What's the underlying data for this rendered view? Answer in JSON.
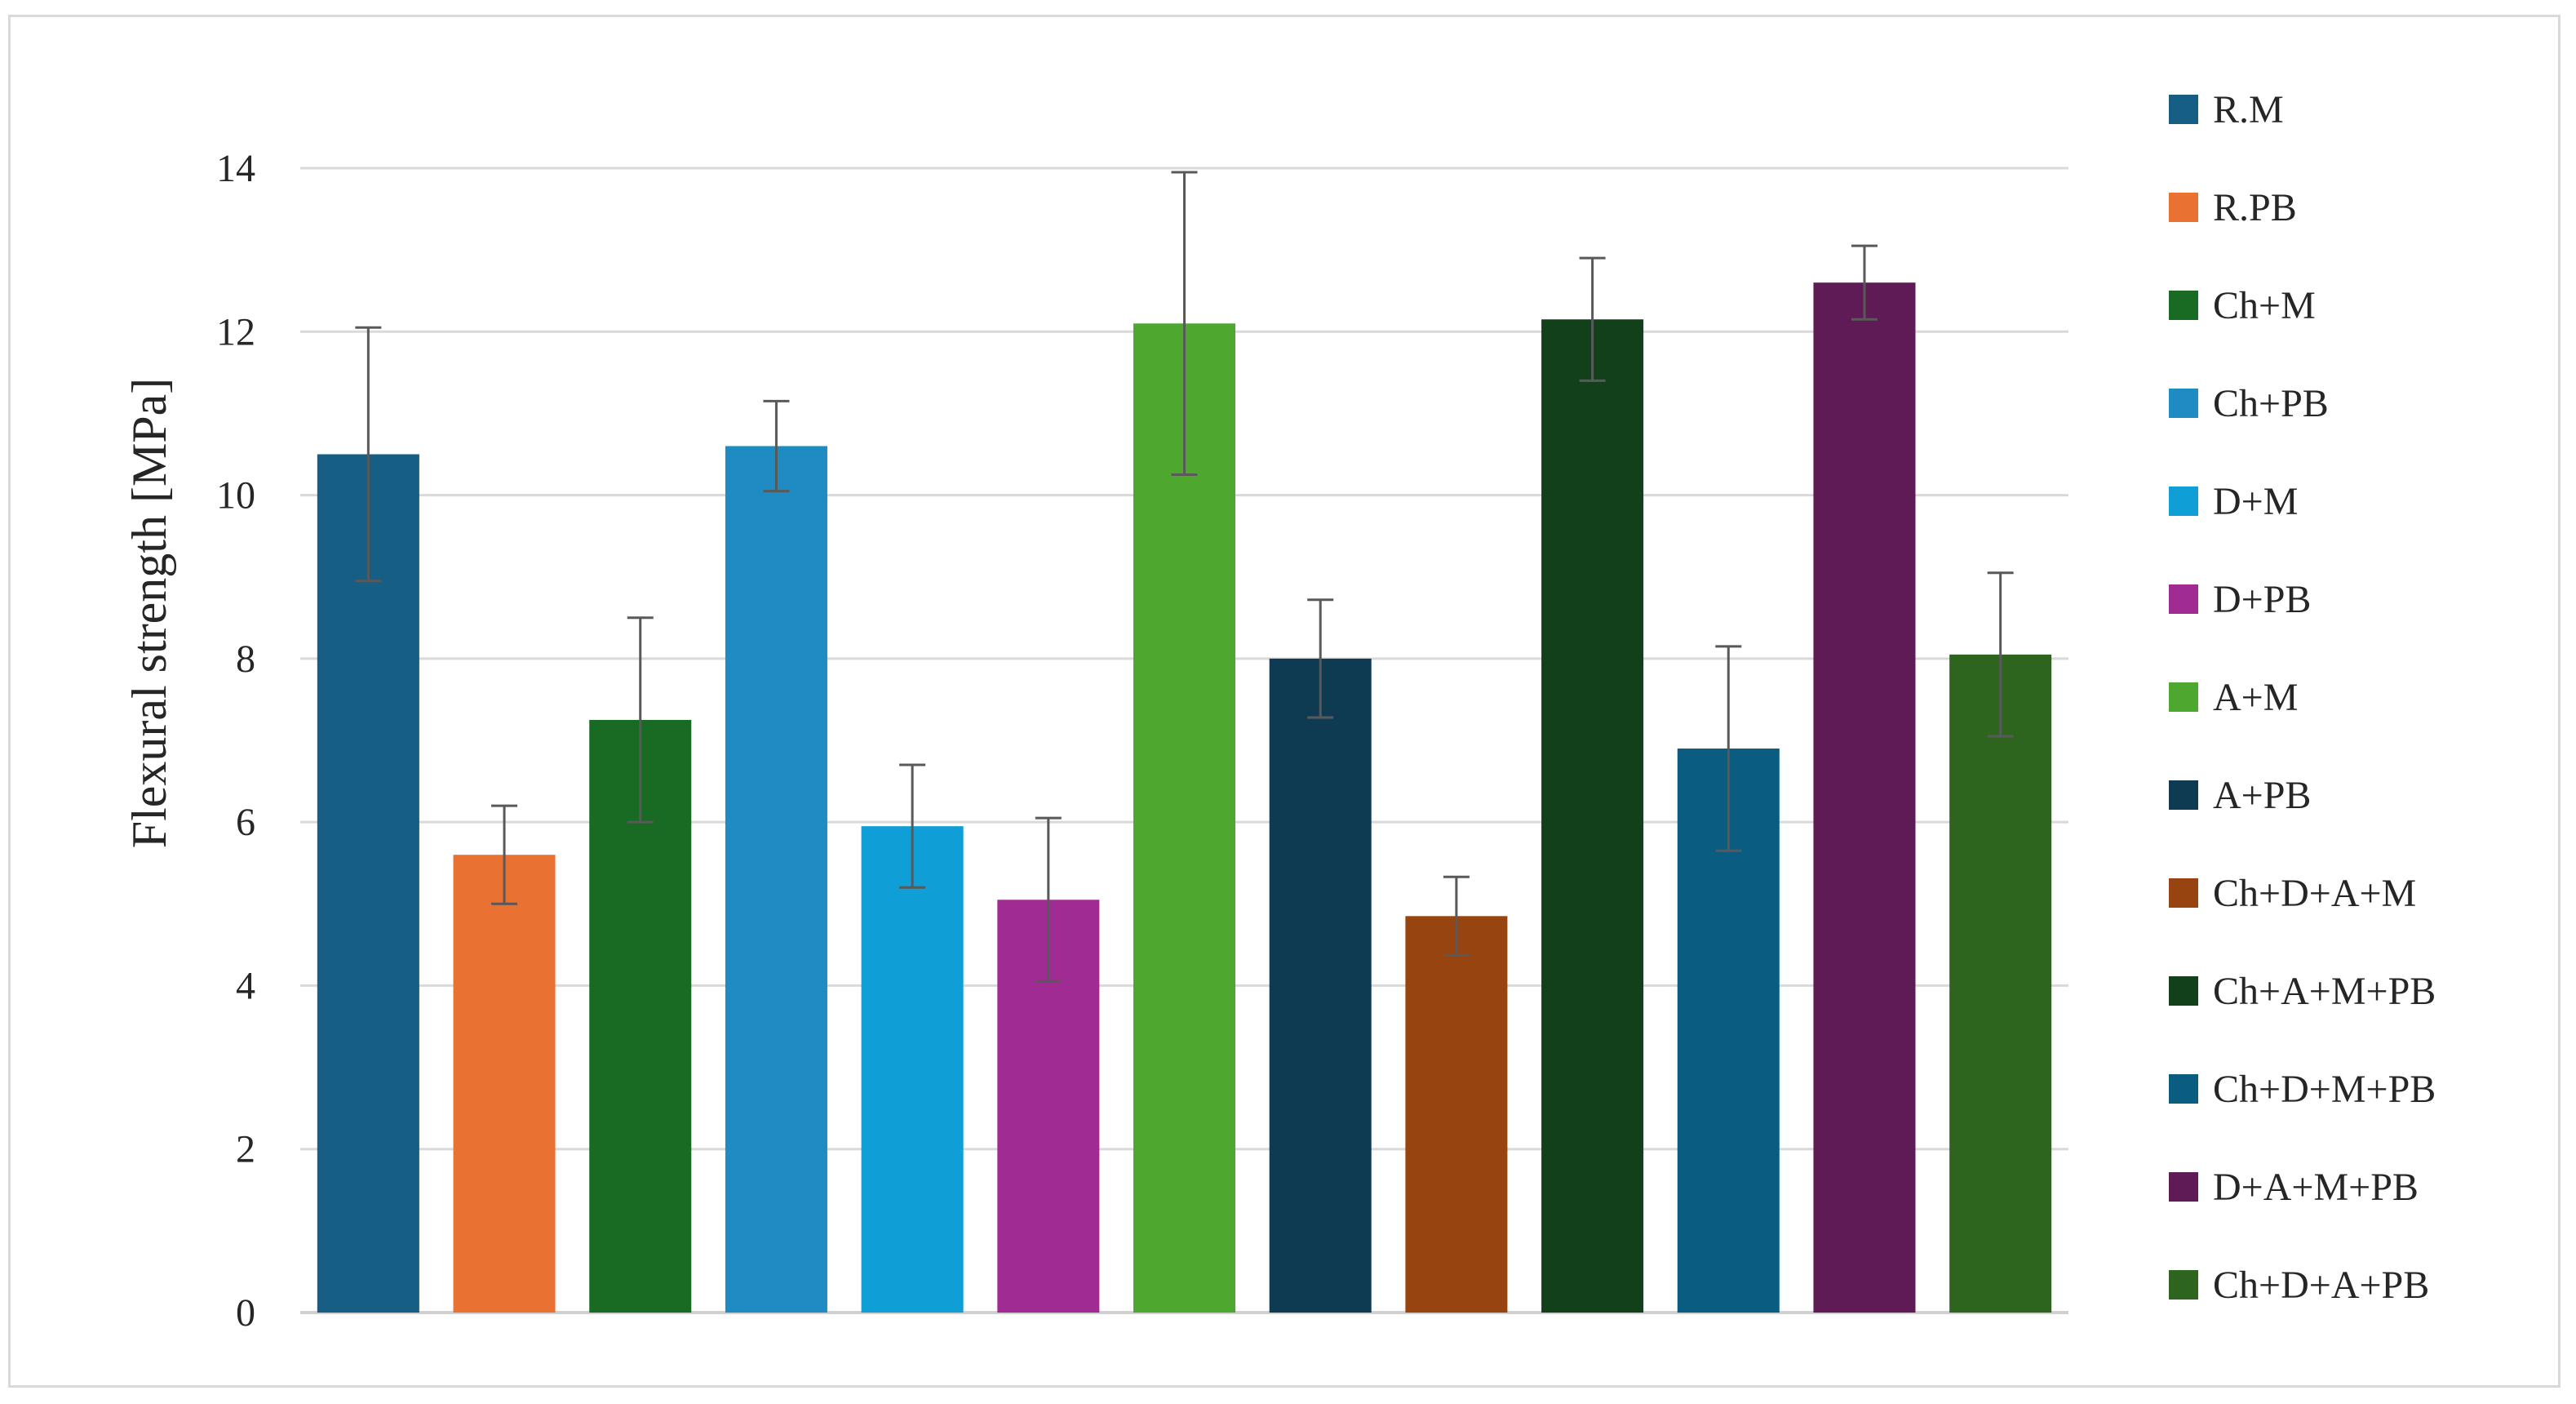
{
  "chart_data": {
    "type": "bar",
    "title": "",
    "xlabel": "",
    "ylabel": "Flexural strength [MPa]",
    "ylim": [
      0,
      14
    ],
    "yticks": [
      0,
      2,
      4,
      6,
      8,
      10,
      12,
      14
    ],
    "grid": true,
    "legend_position": "right",
    "error_bars": true,
    "categories": [
      "R.M",
      "R.PB",
      "Ch+M",
      "Ch+PB",
      "D+M",
      "D+PB",
      "A+M",
      "A+PB",
      "Ch+D+A+M",
      "Ch+A+M+PB",
      "Ch+D+M+PB",
      "D+A+M+PB",
      "Ch+D+A+PB"
    ],
    "values": [
      10.5,
      5.6,
      7.25,
      10.6,
      5.95,
      5.05,
      12.1,
      8.0,
      4.85,
      12.15,
      6.9,
      12.6,
      8.05
    ],
    "errors": [
      1.55,
      0.6,
      1.25,
      0.55,
      0.75,
      1.0,
      1.85,
      0.72,
      0.48,
      0.75,
      1.25,
      0.45,
      1.0
    ],
    "colors": [
      "#165e83",
      "#e97132",
      "#196b24",
      "#1e8bc3",
      "#0f9ed5",
      "#a02b93",
      "#4ea72e",
      "#0e3a52",
      "#974410",
      "#11401a",
      "#0a5c80",
      "#5e1b55",
      "#2d651e"
    ]
  }
}
